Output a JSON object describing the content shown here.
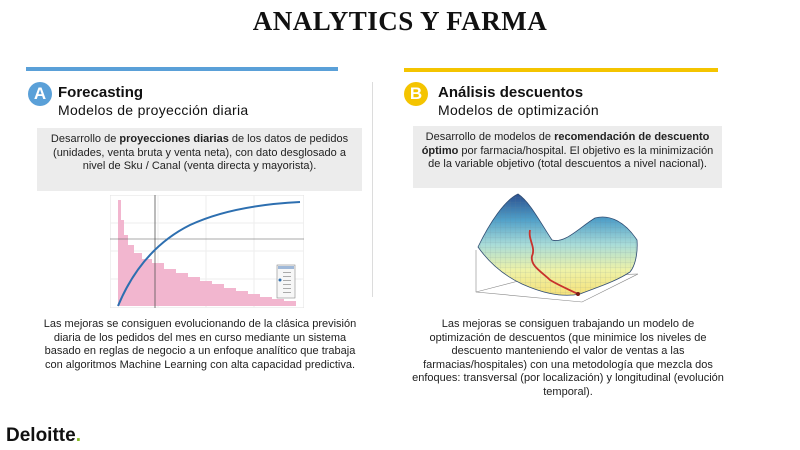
{
  "page_title": "ANALYTICS Y FARMA",
  "colors": {
    "blue": "#5aa0d8",
    "yellow": "#f4c400",
    "deloitte_green": "#86bc25"
  },
  "left": {
    "badge": "A",
    "heading": "Forecasting",
    "subheading": "Modelos de proyección diaria",
    "box": {
      "pre": "Desarrollo de ",
      "bold": "proyecciones diarias",
      "post": " de los datos de pedidos (unidades, venta bruta y venta neta), con dato desglosado a nivel de Sku / Canal (venta directa y mayorista)."
    },
    "chart_icon": "forecast-chart-thumbnail",
    "caption": "Las mejoras se consiguen evolucionando de la clásica previsión diaria de los pedidos del mes en curso mediante un sistema basado en reglas de negocio a un enfoque analítico que trabaja con algoritmos Machine Learning con alta capacidad predictiva."
  },
  "right": {
    "badge": "B",
    "heading": "Análisis descuentos",
    "subheading": "Modelos de optimización",
    "box": {
      "pre": "Desarrollo de modelos de ",
      "bold": "recomendación de descuento óptimo",
      "post": " por farmacia/hospital. El objetivo es la minimización de la variable objetivo (total descuentos a nivel nacional)."
    },
    "chart_icon": "optimization-surface-thumbnail",
    "caption": "Las mejoras se consiguen trabajando un modelo de optimización de descuentos (que minimice los niveles de descuento manteniendo el valor de ventas a las farmacias/hospitales) con una metodología que mezcla dos enfoques: transversal (por localización) y longitudinal (evolución temporal)."
  },
  "logo": {
    "text": "Deloitte",
    "dot": "."
  }
}
